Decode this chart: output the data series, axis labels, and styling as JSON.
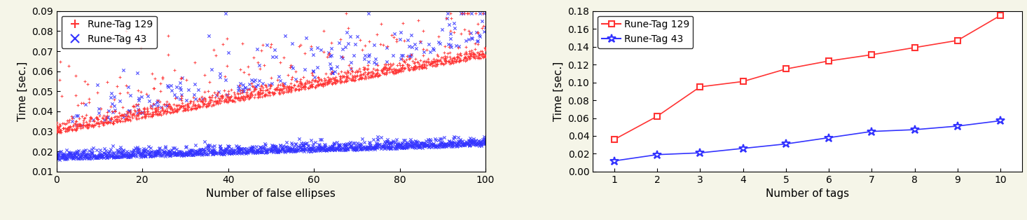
{
  "left": {
    "xlabel": "Number of false ellipses",
    "ylabel": "Time [sec.]",
    "xlim": [
      0,
      100
    ],
    "ylim": [
      0.01,
      0.09
    ],
    "yticks": [
      0.01,
      0.02,
      0.03,
      0.04,
      0.05,
      0.06,
      0.07,
      0.08,
      0.09
    ],
    "xticks": [
      0,
      20,
      40,
      60,
      80,
      100
    ],
    "legend": [
      "Rune-Tag 129",
      "Rune-Tag 43"
    ],
    "red_color": "#ff3333",
    "blue_color": "#3333ff",
    "red_marker": "+",
    "blue_marker": "x"
  },
  "right": {
    "xlabel": "Number of tags",
    "ylabel": "Time [sec.]",
    "ylim": [
      0,
      0.18
    ],
    "xticks": [
      1,
      2,
      3,
      4,
      5,
      6,
      7,
      8,
      9,
      10
    ],
    "yticks": [
      0,
      0.02,
      0.04,
      0.06,
      0.08,
      0.1,
      0.12,
      0.14,
      0.16,
      0.18
    ],
    "legend": [
      "Rune-Tag 129",
      "Rune-Tag 43"
    ],
    "red_x": [
      1,
      2,
      3,
      4,
      5,
      6,
      7,
      8,
      9,
      10
    ],
    "red_y": [
      0.036,
      0.062,
      0.095,
      0.101,
      0.115,
      0.124,
      0.131,
      0.139,
      0.147,
      0.175
    ],
    "blue_x": [
      1,
      2,
      3,
      4,
      5,
      6,
      7,
      8,
      9,
      10
    ],
    "blue_y": [
      0.012,
      0.019,
      0.021,
      0.026,
      0.031,
      0.038,
      0.045,
      0.047,
      0.051,
      0.057
    ],
    "red_color": "#ff3333",
    "blue_color": "#3333ff",
    "red_marker": "s",
    "blue_marker": "*"
  },
  "bg_color": "#f5f5e8",
  "plot_bg": "#ffffff",
  "fontsize_tick": 10,
  "fontsize_label": 11,
  "fontsize_legend": 10
}
